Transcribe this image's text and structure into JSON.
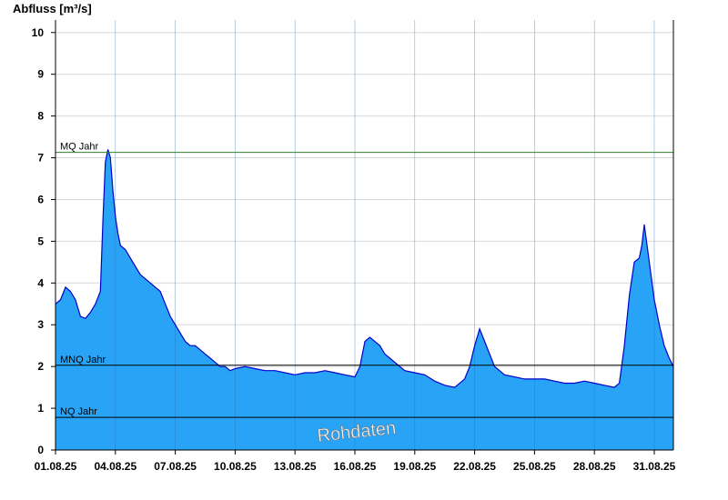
{
  "chart_data": {
    "type": "area",
    "ylabel": "Abfluss [m³/s]",
    "xlabel": "",
    "ylim": [
      0,
      10.3
    ],
    "yticks": [
      0,
      1,
      2,
      3,
      4,
      5,
      6,
      7,
      8,
      9,
      10
    ],
    "x_range": [
      "01.08.25",
      "31.08.25 23:00"
    ],
    "x_tick_labels": [
      "01.08.25",
      "04.08.25",
      "07.08.25",
      "10.08.25",
      "13.08.25",
      "16.08.25",
      "19.08.25",
      "22.08.25",
      "25.08.25",
      "28.08.25",
      "31.08.25"
    ],
    "grid": true,
    "fill_color": "#29a3f5",
    "line_color": "#0000cc",
    "reference_lines": [
      {
        "label": "MQ Jahr",
        "value": 7.13,
        "color": "#2a8a2a"
      },
      {
        "label": "MNQ Jahr",
        "value": 2.03,
        "color": "#000000"
      },
      {
        "label": "NQ Jahr",
        "value": 0.78,
        "color": "#000000"
      }
    ],
    "annotation": "Rohdaten",
    "series": [
      {
        "x": [
          "01.08.25 00:00",
          "01.08.25 06:00",
          "01.08.25 12:00",
          "01.08.25 18:00",
          "02.08.25 00:00",
          "02.08.25 06:00",
          "02.08.25 12:00",
          "02.08.25 18:00",
          "03.08.25 00:00",
          "03.08.25 06:00",
          "03.08.25 09:00",
          "03.08.25 12:00",
          "03.08.25 15:00",
          "03.08.25 18:00",
          "03.08.25 21:00",
          "04.08.25 00:00",
          "04.08.25 03:00",
          "04.08.25 06:00",
          "04.08.25 12:00",
          "04.08.25 18:00",
          "05.08.25 00:00",
          "05.08.25 06:00",
          "05.08.25 12:00",
          "05.08.25 18:00",
          "06.08.25 00:00",
          "06.08.25 06:00",
          "06.08.25 12:00",
          "06.08.25 18:00",
          "07.08.25 00:00",
          "07.08.25 06:00",
          "07.08.25 12:00",
          "07.08.25 18:00",
          "08.08.25 00:00",
          "08.08.25 06:00",
          "08.08.25 12:00",
          "08.08.25 18:00",
          "09.08.25 00:00",
          "09.08.25 06:00",
          "09.08.25 12:00",
          "09.08.25 18:00",
          "10.08.25 00:00",
          "10.08.25 12:00",
          "11.08.25 00:00",
          "11.08.25 12:00",
          "12.08.25 00:00",
          "12.08.25 12:00",
          "13.08.25 00:00",
          "13.08.25 12:00",
          "14.08.25 00:00",
          "14.08.25 12:00",
          "15.08.25 00:00",
          "15.08.25 12:00",
          "16.08.25 00:00",
          "16.08.25 06:00",
          "16.08.25 12:00",
          "16.08.25 18:00",
          "17.08.25 00:00",
          "17.08.25 06:00",
          "17.08.25 12:00",
          "17.08.25 18:00",
          "18.08.25 00:00",
          "18.08.25 12:00",
          "19.08.25 00:00",
          "19.08.25 12:00",
          "20.08.25 00:00",
          "20.08.25 12:00",
          "21.08.25 00:00",
          "21.08.25 12:00",
          "21.08.25 18:00",
          "22.08.25 00:00",
          "22.08.25 06:00",
          "22.08.25 12:00",
          "22.08.25 18:00",
          "23.08.25 00:00",
          "23.08.25 06:00",
          "23.08.25 12:00",
          "24.08.25 00:00",
          "24.08.25 12:00",
          "25.08.25 00:00",
          "25.08.25 12:00",
          "26.08.25 00:00",
          "26.08.25 12:00",
          "27.08.25 00:00",
          "27.08.25 12:00",
          "28.08.25 00:00",
          "28.08.25 12:00",
          "29.08.25 00:00",
          "29.08.25 06:00",
          "29.08.25 12:00",
          "29.08.25 18:00",
          "30.08.25 00:00",
          "30.08.25 06:00",
          "30.08.25 09:00",
          "30.08.25 12:00",
          "30.08.25 18:00",
          "31.08.25 00:00",
          "31.08.25 06:00",
          "31.08.25 12:00",
          "31.08.25 18:00",
          "31.08.25 23:00"
        ],
        "values": [
          3.5,
          3.6,
          3.9,
          3.8,
          3.6,
          3.2,
          3.15,
          3.3,
          3.5,
          3.8,
          5.5,
          6.9,
          7.2,
          7.0,
          6.2,
          5.6,
          5.2,
          4.9,
          4.8,
          4.6,
          4.4,
          4.2,
          4.1,
          4.0,
          3.9,
          3.8,
          3.5,
          3.2,
          3.0,
          2.8,
          2.6,
          2.5,
          2.5,
          2.4,
          2.3,
          2.2,
          2.1,
          2.0,
          2.0,
          1.9,
          1.95,
          2.0,
          1.95,
          1.9,
          1.9,
          1.85,
          1.8,
          1.85,
          1.85,
          1.9,
          1.85,
          1.8,
          1.75,
          2.0,
          2.6,
          2.7,
          2.6,
          2.5,
          2.3,
          2.2,
          2.1,
          1.9,
          1.85,
          1.8,
          1.65,
          1.55,
          1.5,
          1.7,
          2.0,
          2.5,
          2.9,
          2.6,
          2.3,
          2.0,
          1.9,
          1.8,
          1.75,
          1.7,
          1.7,
          1.7,
          1.65,
          1.6,
          1.6,
          1.65,
          1.6,
          1.55,
          1.5,
          1.6,
          2.5,
          3.7,
          4.5,
          4.6,
          4.9,
          5.4,
          4.5,
          3.6,
          3.0,
          2.5,
          2.2,
          2.0
        ]
      }
    ]
  }
}
